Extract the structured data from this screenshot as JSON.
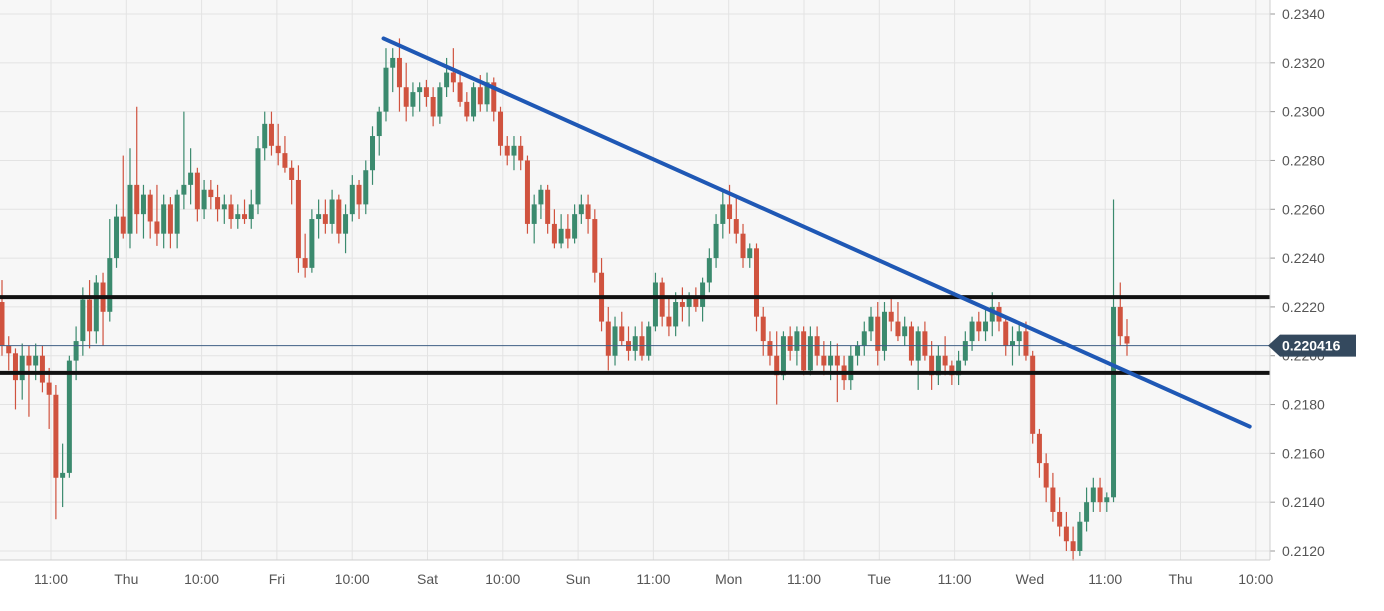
{
  "chart_data": {
    "type": "candlestick",
    "title": "",
    "xlabel": "",
    "ylabel": "",
    "ylim": [
      0.2116,
      0.2342
    ],
    "y_ticks": [
      "0.2120",
      "0.2140",
      "0.2160",
      "0.2180",
      "0.2200",
      "0.2220",
      "0.2240",
      "0.2260",
      "0.2280",
      "0.2300",
      "0.2320",
      "0.2340"
    ],
    "x_ticks": [
      "11:00",
      "Thu",
      "10:00",
      "Fri",
      "10:00",
      "Sat",
      "10:00",
      "Sun",
      "11:00",
      "Mon",
      "11:00",
      "Tue",
      "11:00",
      "Wed",
      "11:00",
      "Thu",
      "10:00"
    ],
    "current_price": "0.220416",
    "horizontal_levels": [
      0.2224,
      0.2193
    ],
    "trendline": {
      "from": {
        "x": 30.2,
        "y": 0.233
      },
      "to": {
        "x": 98.4,
        "y": 0.2171
      }
    },
    "candles": [
      [
        0.2222,
        0.2231,
        0.22,
        0.2204
      ],
      [
        0.2204,
        0.2208,
        0.2194,
        0.2201
      ],
      [
        0.2201,
        0.2203,
        0.2178,
        0.219
      ],
      [
        0.219,
        0.2205,
        0.2182,
        0.22
      ],
      [
        0.22,
        0.2204,
        0.2175,
        0.2196
      ],
      [
        0.2196,
        0.2205,
        0.219,
        0.22
      ],
      [
        0.22,
        0.2204,
        0.2185,
        0.2189
      ],
      [
        0.2189,
        0.2195,
        0.217,
        0.2184
      ],
      [
        0.2184,
        0.2188,
        0.2133,
        0.215
      ],
      [
        0.215,
        0.2164,
        0.2138,
        0.2152
      ],
      [
        0.2152,
        0.22,
        0.215,
        0.2198
      ],
      [
        0.2198,
        0.2212,
        0.219,
        0.2206
      ],
      [
        0.2206,
        0.2228,
        0.22,
        0.2223
      ],
      [
        0.2223,
        0.2231,
        0.2203,
        0.221
      ],
      [
        0.221,
        0.2233,
        0.2205,
        0.223
      ],
      [
        0.223,
        0.2234,
        0.2204,
        0.2218
      ],
      [
        0.2218,
        0.2256,
        0.2214,
        0.224
      ],
      [
        0.224,
        0.2262,
        0.2236,
        0.2257
      ],
      [
        0.2257,
        0.2282,
        0.2248,
        0.225
      ],
      [
        0.225,
        0.2285,
        0.2244,
        0.227
      ],
      [
        0.227,
        0.2302,
        0.225,
        0.2258
      ],
      [
        0.2258,
        0.227,
        0.2248,
        0.2266
      ],
      [
        0.2266,
        0.2268,
        0.2248,
        0.2255
      ],
      [
        0.2255,
        0.227,
        0.2245,
        0.225
      ],
      [
        0.225,
        0.2266,
        0.2244,
        0.2262
      ],
      [
        0.2262,
        0.2265,
        0.2244,
        0.225
      ],
      [
        0.225,
        0.2268,
        0.2244,
        0.2266
      ],
      [
        0.2266,
        0.23,
        0.226,
        0.227
      ],
      [
        0.227,
        0.2285,
        0.2262,
        0.2275
      ],
      [
        0.2275,
        0.2277,
        0.2255,
        0.226
      ],
      [
        0.226,
        0.2272,
        0.2256,
        0.2268
      ],
      [
        0.2268,
        0.2272,
        0.226,
        0.2265
      ],
      [
        0.2265,
        0.227,
        0.2255,
        0.226
      ],
      [
        0.226,
        0.2266,
        0.2254,
        0.2262
      ],
      [
        0.2262,
        0.2266,
        0.2252,
        0.2256
      ],
      [
        0.2256,
        0.2262,
        0.2252,
        0.2258
      ],
      [
        0.2258,
        0.2264,
        0.2254,
        0.2256
      ],
      [
        0.2256,
        0.2268,
        0.2252,
        0.2262
      ],
      [
        0.2262,
        0.229,
        0.2258,
        0.2285
      ],
      [
        0.2285,
        0.23,
        0.228,
        0.2295
      ],
      [
        0.2295,
        0.23,
        0.2282,
        0.2286
      ],
      [
        0.2286,
        0.2295,
        0.2278,
        0.2283
      ],
      [
        0.2283,
        0.229,
        0.2275,
        0.2277
      ],
      [
        0.2277,
        0.228,
        0.2262,
        0.2272
      ],
      [
        0.2272,
        0.2278,
        0.2234,
        0.224
      ],
      [
        0.224,
        0.225,
        0.2232,
        0.2236
      ],
      [
        0.2236,
        0.226,
        0.2234,
        0.2256
      ],
      [
        0.2256,
        0.2264,
        0.2248,
        0.2258
      ],
      [
        0.2258,
        0.2264,
        0.225,
        0.2254
      ],
      [
        0.2254,
        0.2268,
        0.225,
        0.2264
      ],
      [
        0.2264,
        0.2266,
        0.2246,
        0.225
      ],
      [
        0.225,
        0.2262,
        0.2242,
        0.2258
      ],
      [
        0.2258,
        0.2274,
        0.2255,
        0.227
      ],
      [
        0.227,
        0.2272,
        0.2256,
        0.2262
      ],
      [
        0.2262,
        0.228,
        0.2258,
        0.2276
      ],
      [
        0.2276,
        0.2294,
        0.227,
        0.229
      ],
      [
        0.229,
        0.2302,
        0.2282,
        0.23
      ],
      [
        0.23,
        0.2326,
        0.2296,
        0.2318
      ],
      [
        0.2318,
        0.2326,
        0.2308,
        0.2322
      ],
      [
        0.2322,
        0.233,
        0.23,
        0.231
      ],
      [
        0.231,
        0.232,
        0.2296,
        0.2302
      ],
      [
        0.2302,
        0.2312,
        0.2298,
        0.2308
      ],
      [
        0.2308,
        0.2312,
        0.23,
        0.231
      ],
      [
        0.231,
        0.2313,
        0.2302,
        0.2306
      ],
      [
        0.2306,
        0.231,
        0.2294,
        0.2298
      ],
      [
        0.2298,
        0.2312,
        0.2295,
        0.231
      ],
      [
        0.231,
        0.2322,
        0.2306,
        0.2316
      ],
      [
        0.2316,
        0.2326,
        0.2308,
        0.2312
      ],
      [
        0.2312,
        0.2316,
        0.2302,
        0.2304
      ],
      [
        0.2304,
        0.2308,
        0.2296,
        0.2298
      ],
      [
        0.2298,
        0.2312,
        0.2296,
        0.231
      ],
      [
        0.231,
        0.2315,
        0.23,
        0.2303
      ],
      [
        0.2303,
        0.2316,
        0.23,
        0.2312
      ],
      [
        0.2312,
        0.2314,
        0.2296,
        0.23
      ],
      [
        0.23,
        0.2302,
        0.2282,
        0.2286
      ],
      [
        0.2286,
        0.229,
        0.2278,
        0.2282
      ],
      [
        0.2282,
        0.229,
        0.2276,
        0.2286
      ],
      [
        0.2286,
        0.229,
        0.2276,
        0.228
      ],
      [
        0.228,
        0.2282,
        0.225,
        0.2254
      ],
      [
        0.2254,
        0.2266,
        0.2246,
        0.2262
      ],
      [
        0.2262,
        0.227,
        0.2256,
        0.2268
      ],
      [
        0.2268,
        0.227,
        0.225,
        0.2254
      ],
      [
        0.2254,
        0.226,
        0.2244,
        0.2246
      ],
      [
        0.2246,
        0.2258,
        0.2244,
        0.2252
      ],
      [
        0.2252,
        0.2258,
        0.2244,
        0.2248
      ],
      [
        0.2248,
        0.2262,
        0.2246,
        0.2258
      ],
      [
        0.2258,
        0.2266,
        0.2254,
        0.2262
      ],
      [
        0.2262,
        0.2266,
        0.225,
        0.2256
      ],
      [
        0.2256,
        0.226,
        0.223,
        0.2234
      ],
      [
        0.2234,
        0.224,
        0.221,
        0.2214
      ],
      [
        0.2214,
        0.222,
        0.2194,
        0.22
      ],
      [
        0.22,
        0.2216,
        0.2196,
        0.2212
      ],
      [
        0.2212,
        0.2218,
        0.2204,
        0.2206
      ],
      [
        0.2206,
        0.2212,
        0.2198,
        0.2202
      ],
      [
        0.2202,
        0.2212,
        0.2198,
        0.2208
      ],
      [
        0.2208,
        0.2214,
        0.2198,
        0.22
      ],
      [
        0.22,
        0.2214,
        0.2198,
        0.2212
      ],
      [
        0.2212,
        0.2234,
        0.221,
        0.223
      ],
      [
        0.223,
        0.2232,
        0.2212,
        0.2216
      ],
      [
        0.2216,
        0.2224,
        0.2208,
        0.2212
      ],
      [
        0.2212,
        0.2226,
        0.2208,
        0.2222
      ],
      [
        0.2222,
        0.2228,
        0.2214,
        0.222
      ],
      [
        0.222,
        0.2226,
        0.2212,
        0.2224
      ],
      [
        0.2224,
        0.2228,
        0.2218,
        0.222
      ],
      [
        0.222,
        0.2232,
        0.2214,
        0.223
      ],
      [
        0.223,
        0.2244,
        0.2226,
        0.224
      ],
      [
        0.224,
        0.2258,
        0.2236,
        0.2254
      ],
      [
        0.2254,
        0.2268,
        0.2248,
        0.2262
      ],
      [
        0.2262,
        0.227,
        0.225,
        0.2256
      ],
      [
        0.2256,
        0.2265,
        0.2246,
        0.225
      ],
      [
        0.225,
        0.2254,
        0.2236,
        0.224
      ],
      [
        0.224,
        0.2246,
        0.2236,
        0.2244
      ],
      [
        0.2244,
        0.2246,
        0.221,
        0.2216
      ],
      [
        0.2216,
        0.222,
        0.22,
        0.2206
      ],
      [
        0.2206,
        0.221,
        0.2196,
        0.22
      ],
      [
        0.22,
        0.221,
        0.218,
        0.2192
      ],
      [
        0.2192,
        0.221,
        0.219,
        0.2208
      ],
      [
        0.2208,
        0.2212,
        0.2198,
        0.2202
      ],
      [
        0.2202,
        0.2212,
        0.2196,
        0.221
      ],
      [
        0.221,
        0.2212,
        0.2192,
        0.2194
      ],
      [
        0.2194,
        0.2212,
        0.2192,
        0.2208
      ],
      [
        0.2208,
        0.2212,
        0.2196,
        0.22
      ],
      [
        0.22,
        0.2206,
        0.2192,
        0.2196
      ],
      [
        0.2196,
        0.2206,
        0.219,
        0.22
      ],
      [
        0.22,
        0.2205,
        0.2181,
        0.2196
      ],
      [
        0.2196,
        0.22,
        0.2186,
        0.219
      ],
      [
        0.219,
        0.2204,
        0.2186,
        0.22
      ],
      [
        0.22,
        0.2206,
        0.2196,
        0.2204
      ],
      [
        0.2204,
        0.2214,
        0.22,
        0.221
      ],
      [
        0.221,
        0.222,
        0.2206,
        0.2216
      ],
      [
        0.2216,
        0.2222,
        0.2196,
        0.2202
      ],
      [
        0.2202,
        0.2222,
        0.2198,
        0.2218
      ],
      [
        0.2218,
        0.2224,
        0.221,
        0.2214
      ],
      [
        0.2214,
        0.2222,
        0.2206,
        0.2208
      ],
      [
        0.2208,
        0.2216,
        0.2204,
        0.2212
      ],
      [
        0.2212,
        0.2214,
        0.2196,
        0.2198
      ],
      [
        0.2198,
        0.2212,
        0.2186,
        0.221
      ],
      [
        0.221,
        0.2214,
        0.2198,
        0.22
      ],
      [
        0.22,
        0.2206,
        0.2186,
        0.2192
      ],
      [
        0.2192,
        0.2204,
        0.2188,
        0.22
      ],
      [
        0.22,
        0.2208,
        0.2192,
        0.2196
      ],
      [
        0.2196,
        0.2198,
        0.2188,
        0.2192
      ],
      [
        0.2192,
        0.2202,
        0.2188,
        0.2198
      ],
      [
        0.2198,
        0.221,
        0.2196,
        0.2206
      ],
      [
        0.2206,
        0.2216,
        0.2202,
        0.2214
      ],
      [
        0.2214,
        0.2218,
        0.2206,
        0.221
      ],
      [
        0.221,
        0.222,
        0.2206,
        0.2214
      ],
      [
        0.2214,
        0.2226,
        0.2208,
        0.222
      ],
      [
        0.222,
        0.2222,
        0.221,
        0.2214
      ],
      [
        0.2214,
        0.2216,
        0.22,
        0.2204
      ],
      [
        0.2204,
        0.2212,
        0.2196,
        0.2206
      ],
      [
        0.2206,
        0.2214,
        0.22,
        0.221
      ],
      [
        0.221,
        0.2214,
        0.2198,
        0.22
      ],
      [
        0.22,
        0.2202,
        0.2164,
        0.2168
      ],
      [
        0.2168,
        0.217,
        0.215,
        0.2156
      ],
      [
        0.2156,
        0.216,
        0.214,
        0.2146
      ],
      [
        0.2146,
        0.2152,
        0.2132,
        0.2136
      ],
      [
        0.2136,
        0.2142,
        0.2126,
        0.213
      ],
      [
        0.213,
        0.2136,
        0.212,
        0.2124
      ],
      [
        0.2124,
        0.213,
        0.2116,
        0.212
      ],
      [
        0.212,
        0.2136,
        0.2118,
        0.2132
      ],
      [
        0.2132,
        0.2146,
        0.2128,
        0.214
      ],
      [
        0.214,
        0.215,
        0.2136,
        0.2146
      ],
      [
        0.2146,
        0.215,
        0.2136,
        0.214
      ],
      [
        0.214,
        0.2144,
        0.2136,
        0.2142
      ],
      [
        0.2142,
        0.2264,
        0.214,
        0.222
      ],
      [
        0.222,
        0.223,
        0.2204,
        0.2208
      ],
      [
        0.2208,
        0.2215,
        0.22,
        0.2205
      ]
    ]
  },
  "colors": {
    "up": "#3b8a6e",
    "down": "#d0533f",
    "trendline": "#1f58b5",
    "level": "#111111",
    "price_line": "#3f5f85",
    "price_label_bg": "#34495e",
    "price_label_text": "#ffffff",
    "axis_text": "#555555",
    "grid": "#e3e3e3",
    "plot_bg": "#f7f7f7"
  }
}
